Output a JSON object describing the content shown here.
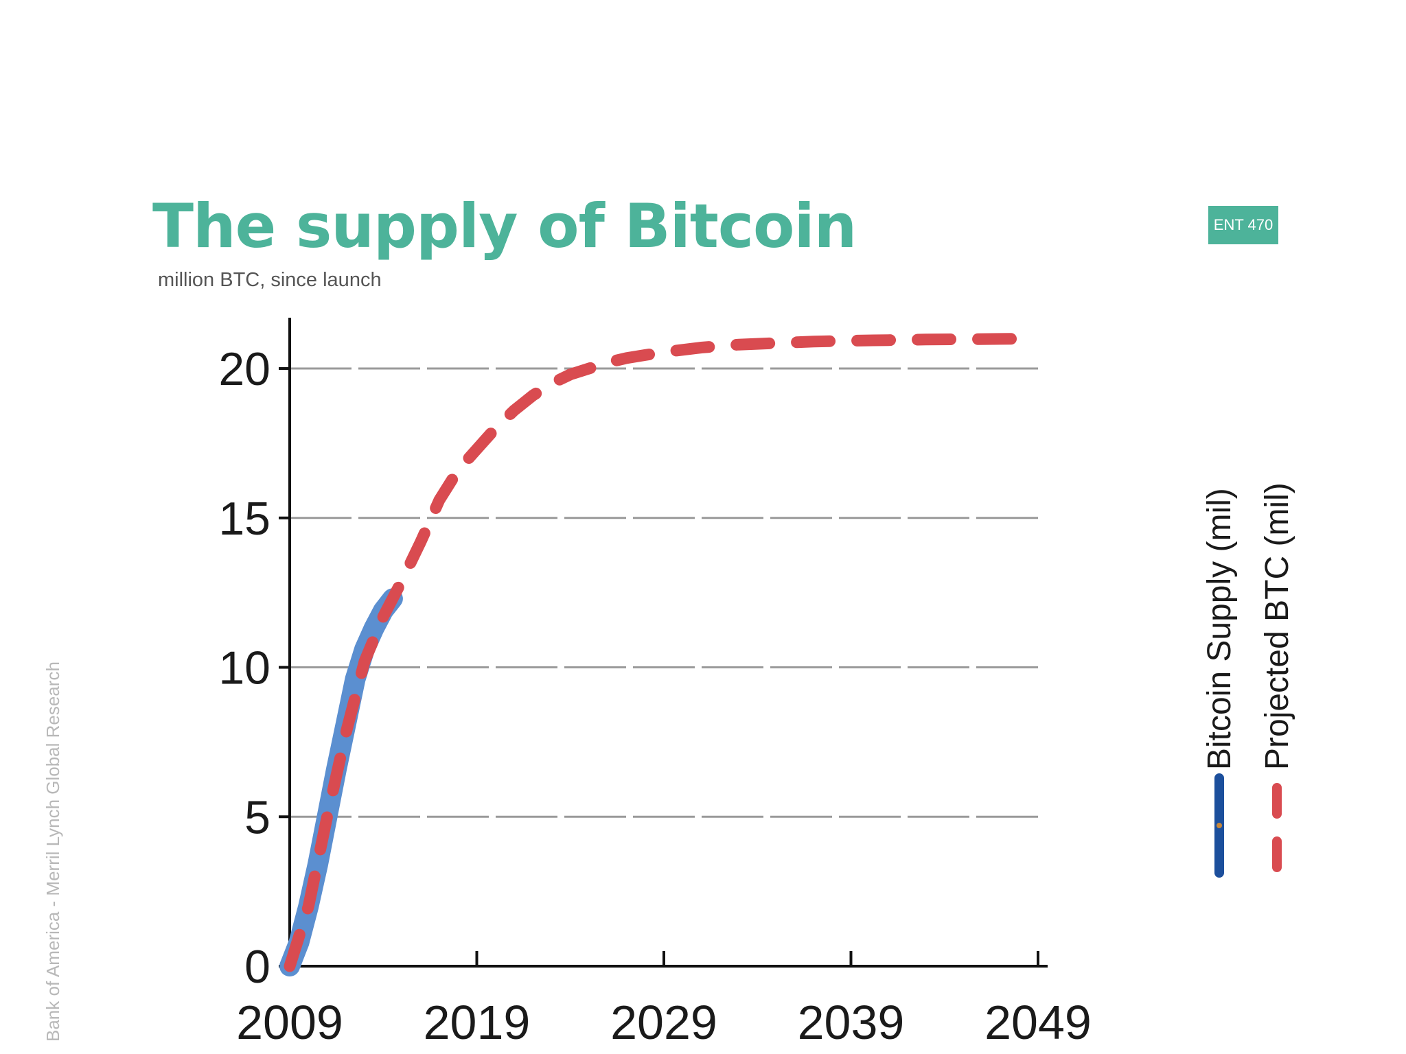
{
  "header": {
    "title": "The supply of Bitcoin",
    "subtitle": "million BTC, since launch",
    "badge": "ENT 470"
  },
  "footer": {
    "source": "Bank of America - Merril Lynch Global Research"
  },
  "colors": {
    "title": "#4db39a",
    "badge_bg": "#4db39a",
    "supply_line": "#5b8fd0",
    "supply_legend": "#1c4f9c",
    "projected_line": "#d94b50",
    "grid": "#9a9a9a",
    "axis": "#111111"
  },
  "chart_data": {
    "type": "line",
    "xlim": [
      2009,
      2049
    ],
    "ylim": [
      0,
      21.7
    ],
    "x_ticks": [
      2009,
      2019,
      2029,
      2039,
      2049
    ],
    "y_ticks": [
      0,
      5,
      10,
      15,
      20
    ],
    "x_tick_labels": [
      "2009",
      "2019",
      "2029",
      "2039",
      "2049"
    ],
    "y_tick_labels": [
      "0",
      "5",
      "10",
      "15",
      "20"
    ],
    "grid": "horizontal",
    "legend_placement": "right",
    "series": [
      {
        "name": "Bitcoin Supply (mil)",
        "style": "solid",
        "x": [
          2009,
          2009.5,
          2010,
          2010.5,
          2011,
          2011.5,
          2012,
          2012.5,
          2013,
          2013.5,
          2014,
          2014.5
        ],
        "y": [
          0,
          0.8,
          2.0,
          3.4,
          5.0,
          6.6,
          8.1,
          9.6,
          10.6,
          11.3,
          11.9,
          12.3
        ]
      },
      {
        "name": "Projected BTC (mil)",
        "style": "dashed",
        "x": [
          2009,
          2010,
          2011,
          2012,
          2013,
          2014,
          2015,
          2016,
          2017,
          2018,
          2019,
          2020,
          2021,
          2022,
          2023,
          2024,
          2025,
          2026,
          2027,
          2028,
          2029,
          2031,
          2033,
          2035,
          2037,
          2039,
          2041,
          2043,
          2045,
          2047,
          2049
        ],
        "y": [
          0,
          2.0,
          5.0,
          7.8,
          10.2,
          11.7,
          12.9,
          14.2,
          15.6,
          16.6,
          17.3,
          18.0,
          18.6,
          19.1,
          19.5,
          19.8,
          20.0,
          20.2,
          20.35,
          20.45,
          20.55,
          20.7,
          20.8,
          20.85,
          20.9,
          20.93,
          20.95,
          20.97,
          20.98,
          20.99,
          21.0
        ]
      }
    ]
  }
}
